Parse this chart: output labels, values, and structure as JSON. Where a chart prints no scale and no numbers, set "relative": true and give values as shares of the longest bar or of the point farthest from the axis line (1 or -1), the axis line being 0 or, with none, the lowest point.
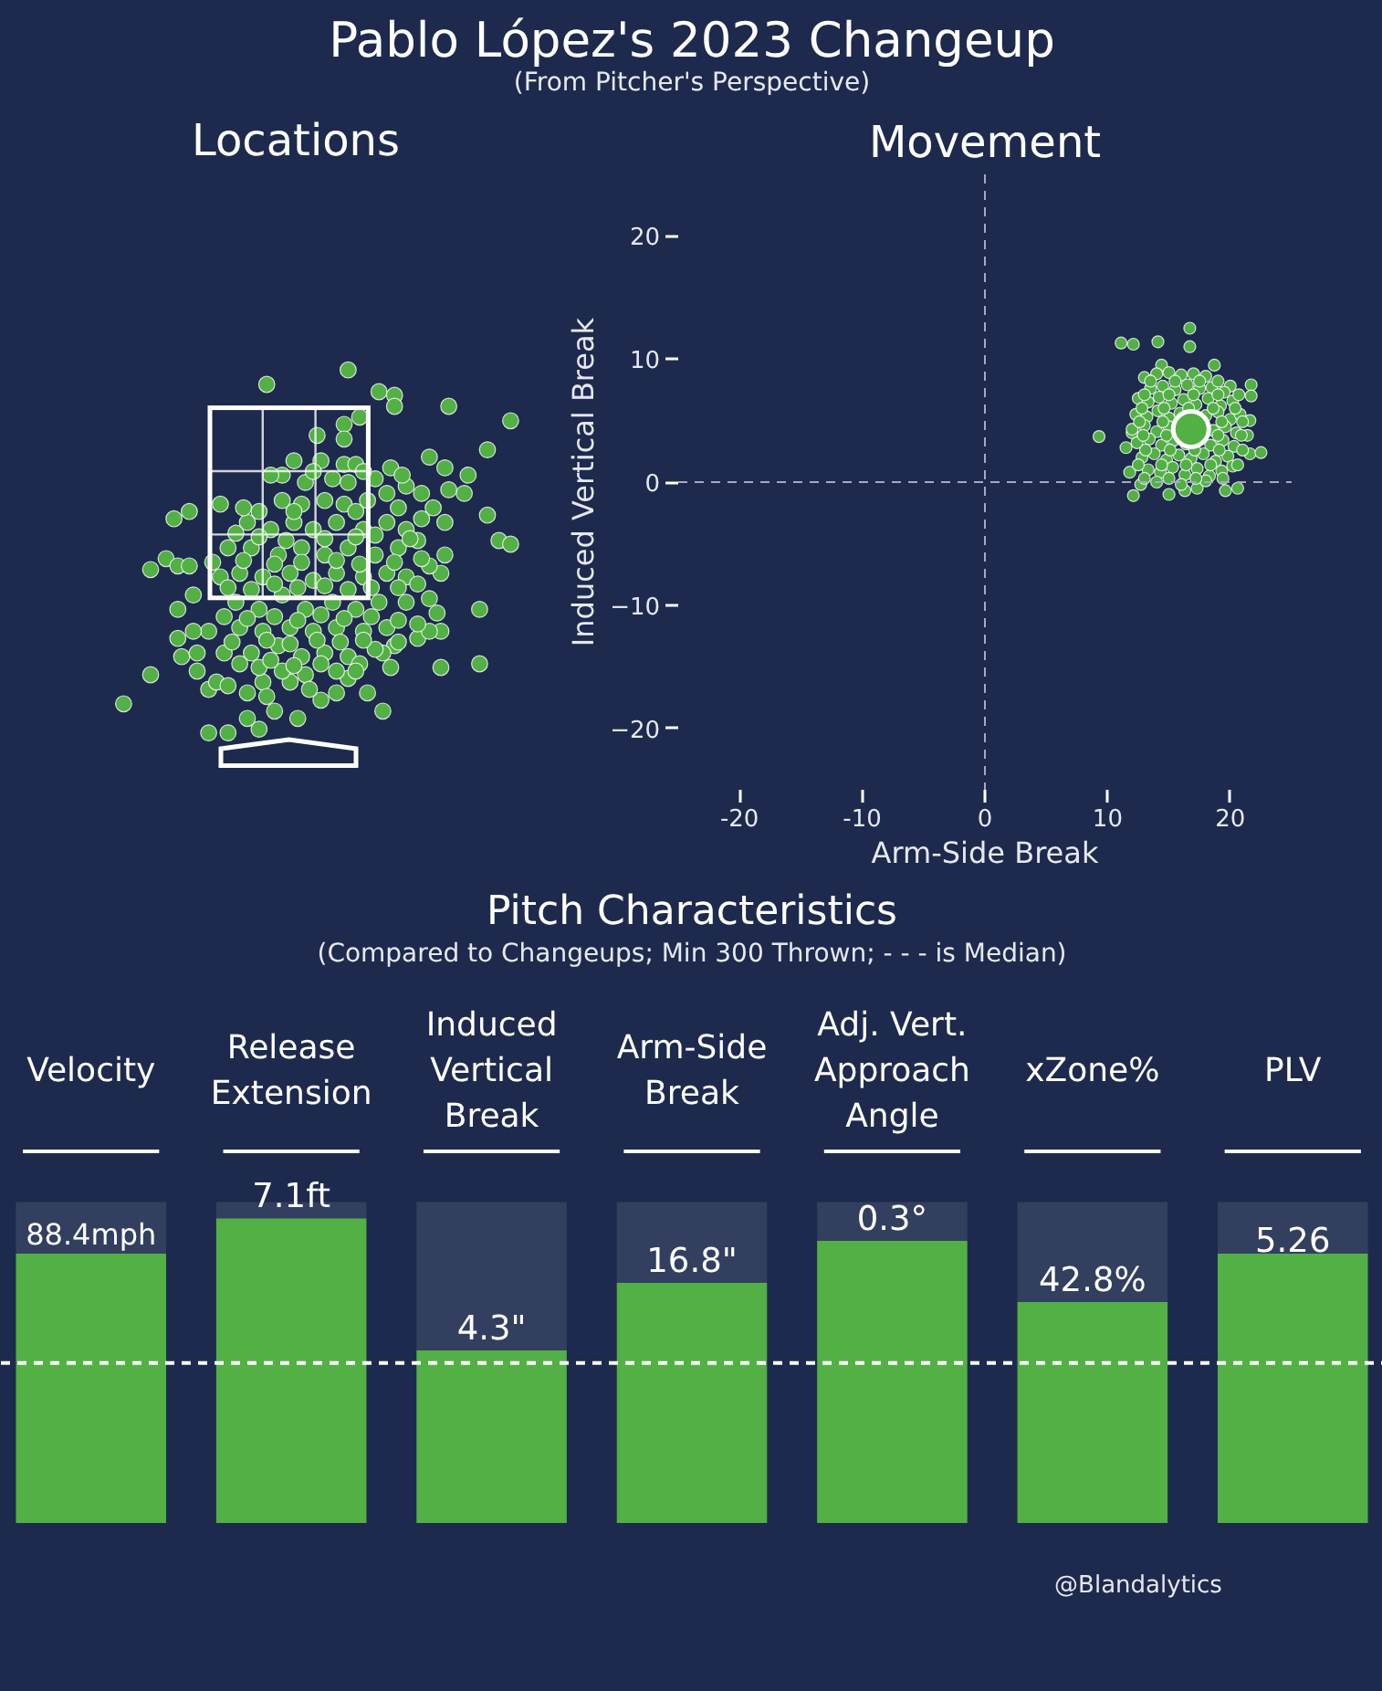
{
  "chart_data": [
    {
      "type": "other",
      "title": "Locations",
      "annotations": [
        "Pablo López's 2023 Changeup",
        "(From Pitcher's Perspective)"
      ]
    },
    {
      "type": "scatter",
      "title": "Movement",
      "xlabel": "Arm-Side Break",
      "ylabel": "Induced Vertical Break",
      "xlim": [
        -25,
        25
      ],
      "ylim": [
        -25,
        25
      ],
      "xticks": [
        -20,
        -10,
        0,
        10,
        20
      ],
      "yticks": [
        {
          "value": -20,
          "label": "−20"
        },
        {
          "value": -10,
          "label": "−10"
        },
        0,
        10,
        20
      ],
      "marker": "circle",
      "ref_lines": [
        {
          "axis": "x",
          "value": 0,
          "color": "#a3abbf",
          "line_style": "dashed"
        },
        {
          "axis": "y",
          "value": 0,
          "color": "#a3abbf",
          "line_style": "dashed"
        }
      ],
      "series": [
        {
          "color": "#52b044",
          "x": [
            9.3,
            11.1,
            12.1,
            14.1,
            16.7,
            16.7,
            18.7,
            21.7,
            21.7,
            21.6,
            21.6,
            22.5,
            21.4,
            12.1,
            11.8,
            15.0,
            16.3,
            17.3,
            19.6,
            20.6,
            12.7,
            20.0,
            14.4,
            11.5,
            12.0,
            13.0,
            14.0,
            15.0,
            16.0,
            17.0,
            18.0,
            13.5,
            14.5,
            15.5,
            16.5,
            17.5,
            18.5,
            19.5,
            12.5,
            13.3,
            14.2,
            15.2,
            16.2,
            17.2,
            18.2,
            19.2,
            20.2,
            12.3,
            13.2,
            14.1,
            15.0,
            15.9,
            18.0,
            19.0,
            20.0,
            20.8,
            12.0,
            13.0,
            14.0,
            15.0,
            18.6,
            19.6,
            20.5,
            12.4,
            13.4,
            14.4,
            15.4,
            16.4,
            18.4,
            19.4,
            20.3,
            12.8,
            13.8,
            14.8,
            15.8,
            16.8,
            17.8,
            18.8,
            19.8,
            13.3,
            14.3,
            15.3,
            16.3,
            17.3,
            18.3,
            19.3,
            20.2,
            14.0,
            16.0,
            18.0,
            13.5,
            15.5,
            17.5,
            19.0,
            13.0,
            15.0,
            17.0,
            19.0,
            20.7,
            12.8,
            14.6,
            16.6,
            18.6,
            20.4,
            12.6,
            14.5,
            19.3,
            21.0,
            12.9,
            14.8,
            19.0,
            20.9,
            13.1,
            15.1,
            17.1,
            19.1,
            21.0,
            12.5,
            14.4,
            16.4,
            18.4,
            20.6,
            13.0,
            15.0,
            17.2,
            19.4
          ],
          "values": [
            3.7,
            11.3,
            11.2,
            11.4,
            12.5,
            11.0,
            9.5,
            7.9,
            7.0,
            5.0,
            2.3,
            2.4,
            3.8,
            -1.1,
            0.8,
            -1.0,
            -0.7,
            -0.5,
            -0.7,
            -0.5,
            -0.2,
            7.8,
            9.5,
            2.8,
            4.0,
            8.5,
            8.8,
            8.9,
            8.7,
            8.8,
            8.6,
            7.6,
            7.8,
            7.5,
            7.9,
            7.6,
            7.7,
            7.3,
            6.8,
            6.5,
            6.9,
            6.4,
            6.7,
            6.3,
            6.8,
            6.2,
            6.6,
            5.5,
            5.3,
            5.8,
            5.2,
            5.6,
            5.4,
            5.7,
            5.1,
            5.5,
            4.3,
            4.6,
            4.1,
            4.5,
            4.2,
            4.5,
            4.0,
            3.2,
            3.5,
            3.0,
            3.4,
            3.1,
            3.0,
            3.4,
            2.9,
            2.0,
            2.3,
            1.8,
            2.2,
            1.9,
            2.3,
            1.7,
            2.1,
            1.0,
            0.8,
            1.2,
            0.6,
            1.1,
            0.5,
            0.9,
            1.3,
            0.0,
            -0.2,
            0.1,
            8.2,
            8.2,
            8.2,
            8.2,
            7.1,
            7.1,
            7.1,
            7.1,
            7.1,
            6.0,
            6.0,
            6.0,
            6.0,
            6.0,
            4.9,
            4.9,
            4.9,
            4.9,
            3.8,
            3.8,
            3.8,
            3.8,
            2.6,
            2.6,
            2.6,
            2.6,
            2.6,
            1.4,
            1.4,
            1.4,
            1.4,
            1.4,
            0.3,
            0.3,
            0.3,
            0.3
          ]
        },
        {
          "type": "bubble",
          "color": "#52b044",
          "x": [
            16.8
          ],
          "values": [
            4.3
          ],
          "sizes": [
            1
          ]
        }
      ]
    },
    {
      "type": "bar",
      "title": "Pitch Characteristics",
      "subtitle": "(Compared to Changeups; Min 300 Thrown; - - - is Median)",
      "categories": [
        "Velocity",
        "Release\nExtension",
        "Induced\nVertical\nBreak",
        "Arm-Side\nBreak",
        "Adj. Vert.\nApproach\nAngle",
        "xZone%",
        "PLV"
      ],
      "relative": true,
      "stacked": true,
      "series": [
        {
          "color": "#52b044",
          "values": [
            0.84,
            0.95,
            0.54,
            0.75,
            0.88,
            0.69,
            0.84
          ]
        },
        {
          "color": "#323f5f",
          "values": [
            0.16,
            0.05,
            0.46,
            0.25,
            0.12,
            0.31,
            0.16
          ]
        }
      ],
      "ref_lines": [
        {
          "axis": "y",
          "value": 0.5,
          "color": "#ffffff",
          "line_style": "dashed"
        }
      ],
      "annotations": [
        {
          "text": "88.4mph",
          "x": "Velocity",
          "y": 0.84
        },
        {
          "text": "7.1ft",
          "x": "Release\nExtension",
          "y": 0.95
        },
        {
          "text": "4.3\"",
          "x": "Induced\nVertical\nBreak",
          "y": 0.54
        },
        {
          "text": "16.8\"",
          "x": "Arm-Side\nBreak",
          "y": 0.75
        },
        {
          "text": "0.3°",
          "x": "Adj. Vert.\nApproach\nAngle",
          "y": 0.88
        },
        {
          "text": "42.8%",
          "x": "xZone%",
          "y": 0.69
        },
        {
          "text": "5.26",
          "x": "PLV",
          "y": 0.84
        },
        "@Blandalytics"
      ]
    }
  ]
}
